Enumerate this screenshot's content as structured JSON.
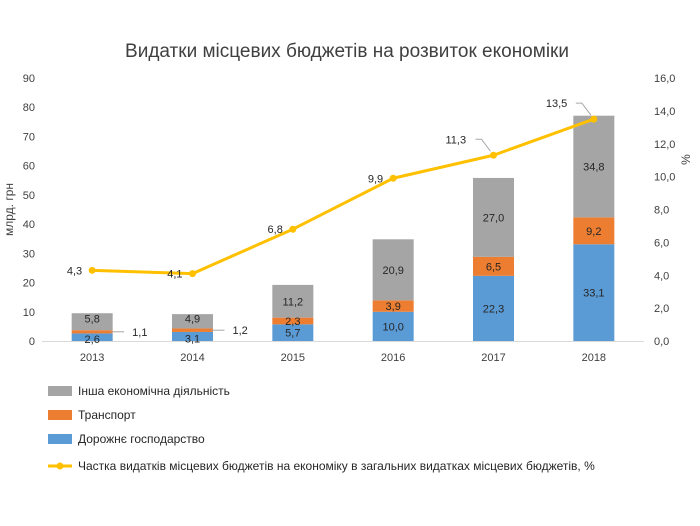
{
  "chart_data": {
    "type": "bar",
    "stacked": true,
    "title": "Видатки місцевих бюджетів на розвиток економіки",
    "categories": [
      "2013",
      "2014",
      "2015",
      "2016",
      "2017",
      "2018"
    ],
    "y_axis": {
      "label": "млрд. грн",
      "ylim": [
        0,
        90
      ],
      "ticks": [
        "0",
        "10",
        "20",
        "30",
        "40",
        "50",
        "60",
        "70",
        "80",
        "90"
      ]
    },
    "y2_axis": {
      "label": "%",
      "ylim": [
        0,
        16
      ],
      "ticks": [
        "0,0",
        "2,0",
        "4,0",
        "6,0",
        "8,0",
        "10,0",
        "12,0",
        "14,0",
        "16,0"
      ]
    },
    "series": [
      {
        "name": "Дорожнє господарство",
        "type": "bar",
        "axis": "left",
        "color": "#5B9BD5",
        "values": [
          2.6,
          3.1,
          5.7,
          10.0,
          22.3,
          33.1
        ],
        "labels": [
          "2,6",
          "3,1",
          "5,7",
          "10,0",
          "22,3",
          "33,1"
        ]
      },
      {
        "name": "Транспорт",
        "type": "bar",
        "axis": "left",
        "color": "#ED7D31",
        "values": [
          1.1,
          1.2,
          2.3,
          3.9,
          6.5,
          9.2
        ],
        "labels": [
          "1,1",
          "1,2",
          "2,3",
          "3,9",
          "6,5",
          "9,2"
        ]
      },
      {
        "name": "Інша економічна діяльність",
        "type": "bar",
        "axis": "left",
        "color": "#A5A5A5",
        "values": [
          5.8,
          4.9,
          11.2,
          20.9,
          27.0,
          34.8
        ],
        "labels": [
          "5,8",
          "4,9",
          "11,2",
          "20,9",
          "27,0",
          "34,8"
        ]
      },
      {
        "name": "Частка видатків місцевих бюджетів на економіку в загальних видатках місцевих бюджетів, %",
        "type": "line",
        "axis": "right",
        "color": "#FFC000",
        "values": [
          4.3,
          4.1,
          6.8,
          9.9,
          11.3,
          13.5
        ],
        "labels": [
          "4,3",
          "4,1",
          "6,8",
          "9,9",
          "11,3",
          "13,5"
        ]
      }
    ],
    "legend": {
      "position": "bottom",
      "order": [
        2,
        1,
        0,
        3
      ]
    },
    "grid": false
  }
}
